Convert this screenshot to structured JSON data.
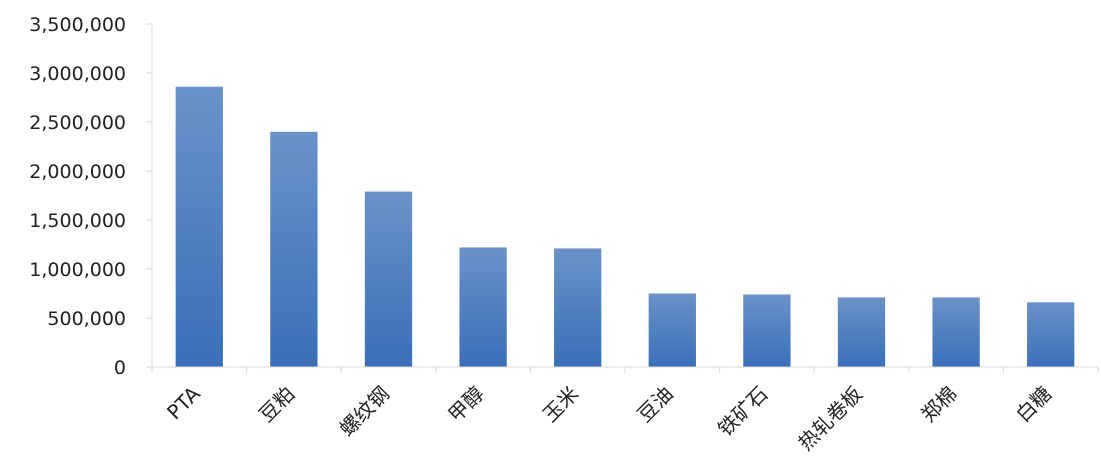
{
  "chart_data": {
    "type": "bar",
    "title": "",
    "xlabel": "",
    "ylabel": "",
    "categories": [
      "PTA",
      "豆粕",
      "螺纹钢",
      "甲醇",
      "玉米",
      "豆油",
      "铁矿石",
      "热轧卷板",
      "郑棉",
      "白糖"
    ],
    "values": [
      2860000,
      2400000,
      1790000,
      1220000,
      1210000,
      750000,
      740000,
      710000,
      710000,
      660000
    ],
    "ylim": [
      0,
      3500000
    ],
    "yticks": [
      0,
      500000,
      1000000,
      1500000,
      2000000,
      2500000,
      3000000,
      3500000
    ],
    "ytick_labels": [
      "0",
      "500,000",
      "1,000,000",
      "1,500,000",
      "2,000,000",
      "2,500,000",
      "3,000,000",
      "3,500,000"
    ],
    "grid": false,
    "legend": "none",
    "colors": {
      "bar_top": "#6a92c9",
      "bar_bottom": "#3a6fb8",
      "axis": "#d9d9d9",
      "text": "#222222"
    }
  }
}
